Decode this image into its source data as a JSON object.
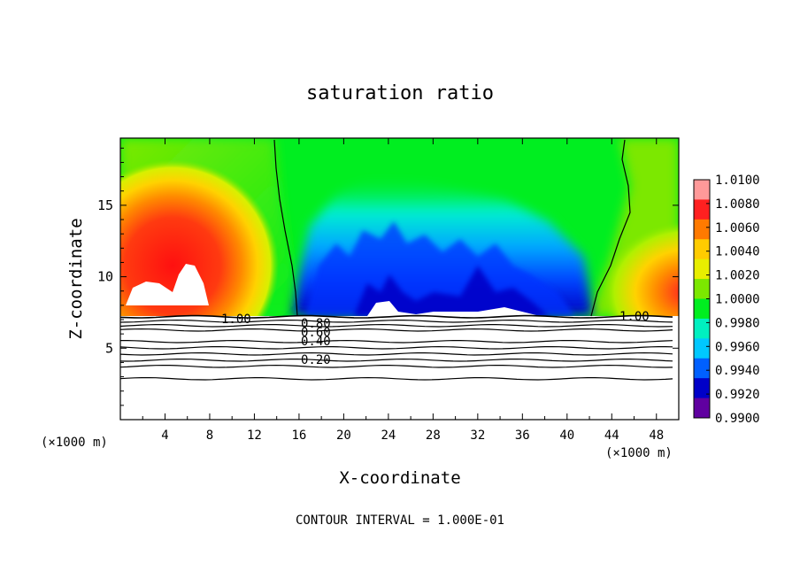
{
  "chart_data": {
    "type": "heatmap",
    "title": "saturation ratio",
    "xlabel": "X-coordinate",
    "ylabel": "Z-coordinate",
    "x_unit_left": "(×1000 m)",
    "x_unit_right": "(×1000 m)",
    "xlim": [
      0,
      50
    ],
    "ylim": [
      0,
      19.7
    ],
    "x_ticks": [
      "4",
      "8",
      "12",
      "16",
      "20",
      "24",
      "28",
      "32",
      "36",
      "40",
      "44",
      "48"
    ],
    "x_tick_values": [
      4,
      8,
      12,
      16,
      20,
      24,
      28,
      32,
      36,
      40,
      44,
      48
    ],
    "y_ticks": [
      "5",
      "10",
      "15"
    ],
    "y_tick_values": [
      5,
      10,
      15
    ],
    "footer": "CONTOUR INTERVAL = 1.000E-01",
    "colorbar": {
      "labels": [
        "1.0100",
        "1.0080",
        "1.0060",
        "1.0040",
        "1.0020",
        "1.0000",
        "0.9980",
        "0.9960",
        "0.9940",
        "0.9920",
        "0.9900"
      ],
      "values": [
        1.01,
        1.008,
        1.006,
        1.004,
        1.002,
        1.0,
        0.998,
        0.996,
        0.994,
        0.992,
        0.99
      ],
      "colors": [
        "#ff9999",
        "#ff2020",
        "#ff7a00",
        "#ffcc00",
        "#e8ee00",
        "#7ce800",
        "#00ee20",
        "#00f0c0",
        "#00c8ff",
        "#0060ff",
        "#0000c8",
        "#6000a0"
      ]
    },
    "contour_labels": [
      "1.00",
      "0.80",
      "0.60",
      "0.40",
      "0.20",
      "1.00"
    ],
    "contour_levels": [
      1.0,
      0.9,
      0.8,
      0.7,
      0.6,
      0.5,
      0.4,
      0.3,
      0.2,
      0.1
    ],
    "cloud_base_z": 7.2,
    "boundary_x_left": 14,
    "boundary_x_right": 41
  }
}
